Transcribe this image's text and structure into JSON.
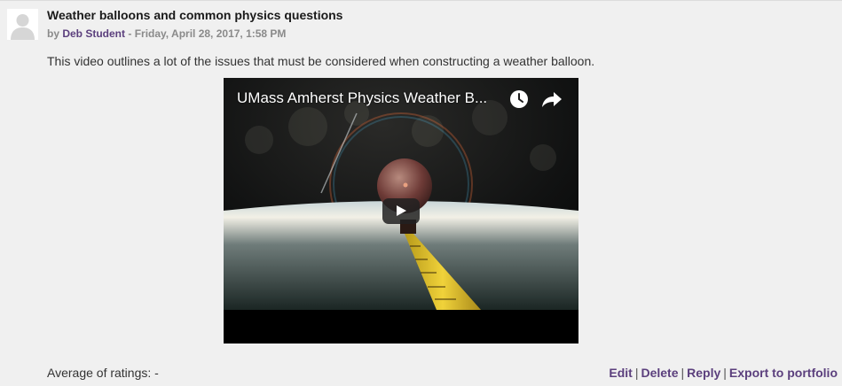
{
  "post": {
    "subject": "Weather balloons and common physics questions",
    "byline_prefix": "by ",
    "author": "Deb Student",
    "date_separator": " - ",
    "date": "Friday, April 28, 2017, 1:58 PM",
    "message": "This video outlines a lot of the issues that must be considered when constructing a weather balloon."
  },
  "video": {
    "title": "UMass Amherst Physics Weather B...",
    "icons": {
      "watch_later": "clock-icon",
      "share": "share-icon",
      "play": "play-icon"
    }
  },
  "footer": {
    "ratings": "Average of ratings: -",
    "commands": {
      "edit": "Edit",
      "delete": "Delete",
      "reply": "Reply",
      "export": "Export to portfolio",
      "separator": "|"
    }
  },
  "colors": {
    "link": "#5b3f7d",
    "background": "#f0f0f0",
    "meta_text": "#8a8a8a"
  }
}
